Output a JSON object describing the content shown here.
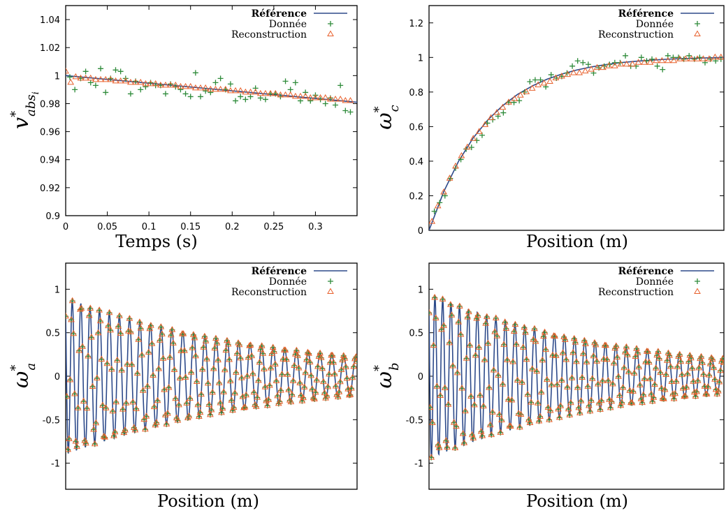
{
  "chart_data": [
    {
      "type": "line",
      "xlabel": "Temps (s)",
      "ylabel": {
        "main": "v",
        "sup": "*",
        "sub": "abs",
        "subsub": "i"
      },
      "xlim": [
        0,
        0.35
      ],
      "ylim": [
        0.9,
        1.05
      ],
      "xticks": [
        0,
        0.05,
        0.1,
        0.15,
        0.2,
        0.25,
        0.3
      ],
      "xtick_labels": [
        "0",
        "0.05",
        "0.1",
        "0.15",
        "0.2",
        "0.25",
        "0.3"
      ],
      "yticks": [
        0.9,
        0.92,
        0.94,
        0.96,
        0.98,
        1.0,
        1.02,
        1.04
      ],
      "ytick_labels": [
        "0.9",
        "0.92",
        "0.94",
        "0.96",
        "0.98",
        "1",
        "1.02",
        "1.04"
      ],
      "grid": false,
      "legend_position": "top-right",
      "series": [
        {
          "name": "Référence",
          "style": "line",
          "color": "#2d4a8a",
          "x": [
            0,
            0.35
          ],
          "y": [
            1.0,
            0.981
          ]
        },
        {
          "name": "Donnée",
          "style": "plus",
          "color": "#2e8b3a",
          "x": [
            0.005,
            0.011,
            0.018,
            0.024,
            0.03,
            0.036,
            0.042,
            0.048,
            0.054,
            0.06,
            0.066,
            0.072,
            0.078,
            0.084,
            0.09,
            0.096,
            0.102,
            0.108,
            0.114,
            0.12,
            0.126,
            0.132,
            0.138,
            0.144,
            0.15,
            0.156,
            0.162,
            0.168,
            0.174,
            0.18,
            0.186,
            0.192,
            0.198,
            0.204,
            0.21,
            0.216,
            0.222,
            0.228,
            0.234,
            0.24,
            0.246,
            0.252,
            0.258,
            0.264,
            0.27,
            0.276,
            0.282,
            0.288,
            0.294,
            0.3,
            0.306,
            0.312,
            0.318,
            0.324,
            0.33,
            0.336,
            0.342
          ],
          "y": [
            0.999,
            0.99,
            0.998,
            1.003,
            0.995,
            0.993,
            1.005,
            0.988,
            0.998,
            1.004,
            1.003,
            0.998,
            0.987,
            0.996,
            0.99,
            0.992,
            0.995,
            0.993,
            0.993,
            0.987,
            0.994,
            0.992,
            0.99,
            0.987,
            0.985,
            1.002,
            0.985,
            0.989,
            0.988,
            0.995,
            0.998,
            0.99,
            0.994,
            0.982,
            0.985,
            0.983,
            0.985,
            0.991,
            0.984,
            0.983,
            0.987,
            0.987,
            0.985,
            0.996,
            0.99,
            0.995,
            0.982,
            0.988,
            0.982,
            0.986,
            0.983,
            0.98,
            0.984,
            0.979,
            0.993,
            0.975,
            0.974
          ]
        },
        {
          "name": "Reconstruction",
          "style": "triangle",
          "color": "#e8602c",
          "x": [
            0.0,
            0.006,
            0.012,
            0.018,
            0.024,
            0.03,
            0.036,
            0.042,
            0.048,
            0.054,
            0.06,
            0.066,
            0.072,
            0.078,
            0.084,
            0.09,
            0.096,
            0.102,
            0.108,
            0.114,
            0.12,
            0.126,
            0.132,
            0.138,
            0.144,
            0.15,
            0.156,
            0.162,
            0.168,
            0.174,
            0.18,
            0.186,
            0.192,
            0.198,
            0.204,
            0.21,
            0.216,
            0.222,
            0.228,
            0.234,
            0.24,
            0.246,
            0.252,
            0.258,
            0.264,
            0.27,
            0.276,
            0.282,
            0.288,
            0.294,
            0.3,
            0.306,
            0.312,
            0.318,
            0.324,
            0.33,
            0.336,
            0.342
          ],
          "y": [
            1.003,
            0.995,
            0.999,
            0.998,
            0.998,
            0.998,
            0.997,
            0.997,
            0.997,
            0.997,
            0.996,
            0.996,
            0.996,
            0.995,
            0.995,
            0.995,
            0.994,
            0.994,
            0.994,
            0.993,
            0.993,
            0.993,
            0.993,
            0.992,
            0.992,
            0.992,
            0.991,
            0.991,
            0.991,
            0.99,
            0.99,
            0.99,
            0.99,
            0.989,
            0.989,
            0.989,
            0.988,
            0.988,
            0.988,
            0.987,
            0.987,
            0.987,
            0.987,
            0.986,
            0.986,
            0.986,
            0.985,
            0.985,
            0.985,
            0.984,
            0.984,
            0.984,
            0.984,
            0.983,
            0.983,
            0.983,
            0.982,
            0.982
          ]
        }
      ]
    },
    {
      "type": "line",
      "xlabel": "Position (m)",
      "ylabel": {
        "main": "ω",
        "sup": "*",
        "sub": "c"
      },
      "xlim": [
        0,
        1
      ],
      "ylim": [
        0,
        1.3
      ],
      "xticks": [],
      "yticks": [
        0,
        0.2,
        0.4,
        0.6,
        0.8,
        1.0,
        1.2
      ],
      "ytick_labels": [
        "0",
        "0.2",
        "0.4",
        "0.6",
        "0.8",
        "1",
        "1.2"
      ],
      "grid": false,
      "legend_position": "top-right",
      "series": [
        {
          "name": "Référence",
          "style": "line",
          "color": "#2d4a8a",
          "x": [
            0,
            0.05,
            0.1,
            0.15,
            0.2,
            0.25,
            0.3,
            0.35,
            0.4,
            0.45,
            0.5,
            0.55,
            0.6,
            0.65,
            0.7,
            0.75,
            0.8,
            0.85,
            0.9,
            0.95,
            1.0
          ],
          "y": [
            0.0,
            0.224,
            0.399,
            0.535,
            0.64,
            0.722,
            0.786,
            0.835,
            0.874,
            0.904,
            0.927,
            0.945,
            0.959,
            0.97,
            0.978,
            0.984,
            0.989,
            0.993,
            0.995,
            0.998,
            1.0
          ]
        },
        {
          "name": "Donnée",
          "style": "plus",
          "color": "#2e8b3a",
          "x": [
            0.018,
            0.036,
            0.054,
            0.072,
            0.09,
            0.108,
            0.126,
            0.144,
            0.162,
            0.18,
            0.198,
            0.216,
            0.234,
            0.252,
            0.27,
            0.288,
            0.306,
            0.324,
            0.342,
            0.36,
            0.378,
            0.396,
            0.414,
            0.432,
            0.45,
            0.468,
            0.486,
            0.504,
            0.522,
            0.54,
            0.558,
            0.576,
            0.594,
            0.612,
            0.63,
            0.648,
            0.666,
            0.684,
            0.702,
            0.72,
            0.738,
            0.756,
            0.774,
            0.792,
            0.81,
            0.828,
            0.846,
            0.864,
            0.882,
            0.9,
            0.918,
            0.936,
            0.954,
            0.972,
            0.99
          ],
          "y": [
            0.11,
            0.16,
            0.2,
            0.3,
            0.36,
            0.41,
            0.47,
            0.48,
            0.52,
            0.55,
            0.62,
            0.64,
            0.66,
            0.68,
            0.74,
            0.74,
            0.75,
            0.8,
            0.86,
            0.87,
            0.87,
            0.83,
            0.9,
            0.88,
            0.89,
            0.91,
            0.95,
            0.98,
            0.97,
            0.96,
            0.91,
            0.94,
            0.95,
            0.96,
            0.97,
            0.97,
            1.01,
            0.95,
            0.95,
            1.0,
            0.98,
            0.99,
            0.95,
            0.93,
            1.01,
            1.0,
            1.0,
            0.99,
            1.01,
            0.99,
            1.0,
            0.97,
            0.99,
            0.98,
            0.99
          ]
        },
        {
          "name": "Reconstruction",
          "style": "triangle",
          "color": "#e8602c",
          "x": [
            0.01,
            0.03,
            0.05,
            0.07,
            0.09,
            0.11,
            0.13,
            0.15,
            0.17,
            0.19,
            0.21,
            0.23,
            0.25,
            0.27,
            0.29,
            0.31,
            0.33,
            0.35,
            0.37,
            0.39,
            0.41,
            0.43,
            0.45,
            0.47,
            0.49,
            0.51,
            0.53,
            0.55,
            0.57,
            0.59,
            0.61,
            0.63,
            0.65,
            0.67,
            0.69,
            0.71,
            0.73,
            0.75,
            0.77,
            0.79,
            0.81,
            0.83,
            0.85,
            0.87,
            0.89,
            0.91,
            0.93,
            0.95,
            0.97,
            0.99
          ],
          "y": [
            0.05,
            0.14,
            0.22,
            0.3,
            0.37,
            0.43,
            0.48,
            0.53,
            0.57,
            0.61,
            0.65,
            0.68,
            0.71,
            0.74,
            0.76,
            0.78,
            0.8,
            0.82,
            0.84,
            0.85,
            0.86,
            0.88,
            0.89,
            0.9,
            0.91,
            0.91,
            0.92,
            0.93,
            0.94,
            0.94,
            0.95,
            0.95,
            0.96,
            0.96,
            0.96,
            0.97,
            0.97,
            0.97,
            0.98,
            0.98,
            0.98,
            0.98,
            0.99,
            0.99,
            0.99,
            0.99,
            0.99,
            0.99,
            1.0,
            1.0
          ]
        }
      ]
    },
    {
      "type": "line",
      "xlabel": "Position (m)",
      "ylabel": {
        "main": "ω",
        "sup": "*",
        "sub": "a"
      },
      "xlim": [
        0,
        1
      ],
      "ylim": [
        -1.3,
        1.3
      ],
      "xticks": [],
      "yticks": [
        -1,
        -0.5,
        0,
        0.5,
        1
      ],
      "ytick_labels": [
        "-1",
        "-0.5",
        "0",
        "0.5",
        "1"
      ],
      "grid": false,
      "legend_position": "top-right",
      "oscillation": {
        "amplitude_start": 0.9,
        "amplitude_end": 0.22,
        "cycles": 27,
        "peak": 1.0,
        "trough": -0.88
      },
      "series": [
        {
          "name": "Référence",
          "style": "line",
          "color": "#2d4a8a"
        },
        {
          "name": "Donnée",
          "style": "plus",
          "color": "#2e8b3a"
        },
        {
          "name": "Reconstruction",
          "style": "triangle",
          "color": "#e8602c"
        }
      ]
    },
    {
      "type": "line",
      "xlabel": "Position (m)",
      "ylabel": {
        "main": "ω",
        "sup": "*",
        "sub": "b"
      },
      "xlim": [
        0,
        1
      ],
      "ylim": [
        -1.3,
        1.3
      ],
      "xticks": [],
      "yticks": [
        -1,
        -0.5,
        0,
        0.5,
        1
      ],
      "ytick_labels": [
        "-1",
        "-0.5",
        "0",
        "0.5",
        "1"
      ],
      "grid": false,
      "legend_position": "top-right",
      "oscillation": {
        "amplitude_start": 0.95,
        "amplitude_end": 0.2,
        "cycles": 30,
        "peak": 0.95,
        "trough": -1.0
      },
      "series": [
        {
          "name": "Référence",
          "style": "line",
          "color": "#2d4a8a"
        },
        {
          "name": "Donnée",
          "style": "plus",
          "color": "#2e8b3a"
        },
        {
          "name": "Reconstruction",
          "style": "triangle",
          "color": "#e8602c"
        }
      ]
    }
  ]
}
